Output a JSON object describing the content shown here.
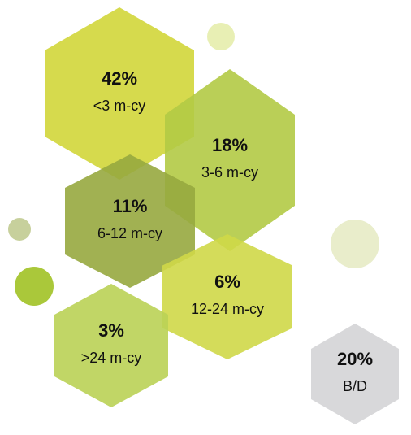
{
  "chart_data": {
    "type": "hexagon",
    "categories": [
      "<3 m-cy",
      "3-6 m-cy",
      "6-12 m-cy",
      "12-24 m-cy",
      ">24 m-cy",
      "B/D"
    ],
    "values": [
      42,
      18,
      11,
      6,
      3,
      20
    ],
    "value_labels": [
      "42%",
      "18%",
      "11%",
      "6%",
      "3%",
      "20%"
    ],
    "colors": [
      "#d2d63a",
      "#b3ca45",
      "#97a93f",
      "#cfd848",
      "#bad255",
      "#d4d4d6"
    ]
  }
}
